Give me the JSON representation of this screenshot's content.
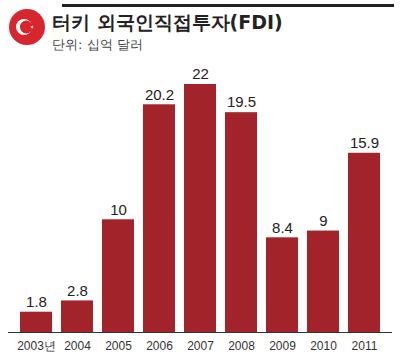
{
  "chart_data": {
    "type": "bar",
    "title": "터키 외국인직접투자(FDI)",
    "subtitle": "단위: 십억 달러",
    "categories": [
      "2003년",
      "2004",
      "2005",
      "2006",
      "2007",
      "2008",
      "2009",
      "2010",
      "2011"
    ],
    "values": [
      1.8,
      2.8,
      10,
      20.2,
      22,
      19.5,
      8.4,
      9,
      15.9
    ],
    "color": "#a3232b",
    "ylim": [
      0,
      22
    ],
    "data_labels": true,
    "tick_labels": "x"
  }
}
